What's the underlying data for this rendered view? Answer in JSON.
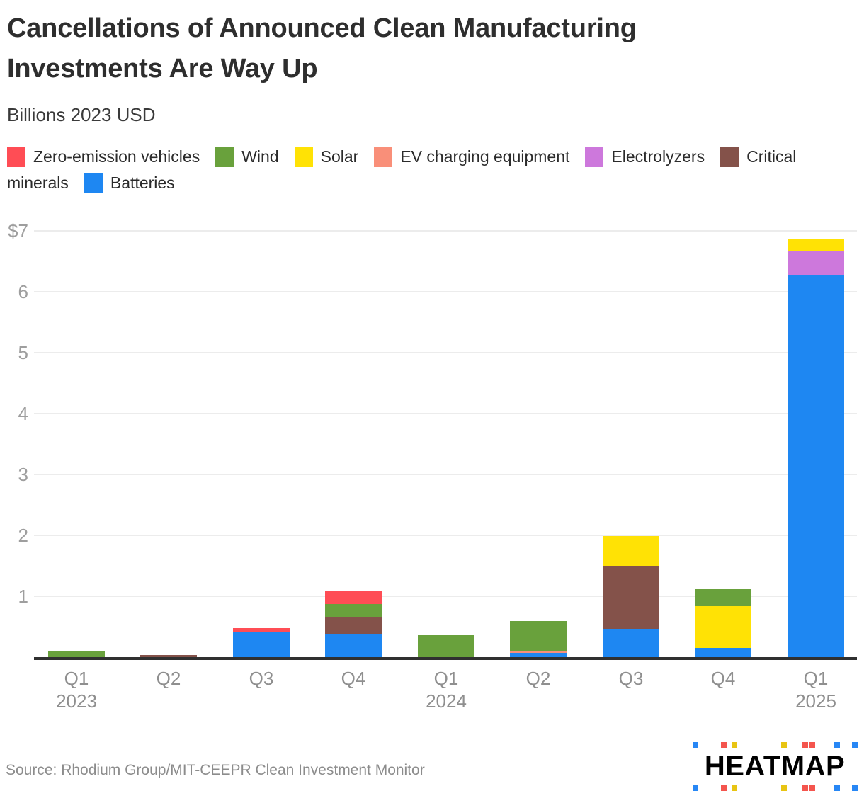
{
  "title": "Cancellations of Announced Clean Manufacturing Investments Are Way Up",
  "subtitle": "Billions 2023 USD",
  "source": "Source: Rhodium Group/MIT-CEEPR Clean Investment Monitor",
  "logo": {
    "text": "HEATMAP",
    "square_pattern": [
      "blue",
      "red",
      "yellow",
      "yellow",
      "red",
      "red",
      "blue",
      "blue"
    ],
    "square_colors": {
      "blue": "#2787f5",
      "red": "#f4554e",
      "yellow": "#e8c413"
    }
  },
  "chart_data": {
    "type": "bar",
    "stacked": true,
    "title": "Cancellations of Announced Clean Manufacturing Investments Are Way Up",
    "unit_label": "Billions 2023 USD",
    "xlabel": "",
    "ylabel": "Billions 2023 USD",
    "ylim": [
      0,
      7
    ],
    "grid": true,
    "legend_position": "top",
    "categories": [
      "Q1",
      "Q2",
      "Q3",
      "Q4",
      "Q1",
      "Q2",
      "Q3",
      "Q4",
      "Q1"
    ],
    "year_labels": [
      {
        "index": 0,
        "label": "2023"
      },
      {
        "index": 4,
        "label": "2024"
      },
      {
        "index": 8,
        "label": "2025"
      }
    ],
    "y_ticks": [
      {
        "value": 7,
        "label": "$7"
      },
      {
        "value": 6,
        "label": "6"
      },
      {
        "value": 5,
        "label": "5"
      },
      {
        "value": 4,
        "label": "4"
      },
      {
        "value": 3,
        "label": "3"
      },
      {
        "value": 2,
        "label": "2"
      },
      {
        "value": 1,
        "label": "1"
      }
    ],
    "legend": [
      {
        "label": "Zero-emission vehicles",
        "color": "#ff4d55"
      },
      {
        "label": "Wind",
        "color": "#69a13c"
      },
      {
        "label": "Solar",
        "color": "#ffe205"
      },
      {
        "label": "EV charging equipment",
        "color": "#f98f79"
      },
      {
        "label": "Electrolyzers",
        "color": "#cd78dc"
      },
      {
        "label": "Critical minerals",
        "color": "#84524a"
      },
      {
        "label": "Batteries",
        "color": "#1e87f2"
      }
    ],
    "series": [
      {
        "name": "Batteries",
        "color": "#1e87f2",
        "values": [
          0,
          0,
          0.42,
          0.37,
          0,
          0.07,
          0.47,
          0.15,
          6.27
        ]
      },
      {
        "name": "EV charging equipment",
        "color": "#f98f79",
        "values": [
          0,
          0,
          0,
          0,
          0,
          0.02,
          0,
          0,
          0
        ]
      },
      {
        "name": "Critical minerals",
        "color": "#84524a",
        "values": [
          0,
          0.03,
          0,
          0.28,
          0,
          0,
          1.02,
          0,
          0
        ]
      },
      {
        "name": "Electrolyzers",
        "color": "#cd78dc",
        "values": [
          0,
          0,
          0,
          0,
          0,
          0,
          0,
          0,
          0.39
        ]
      },
      {
        "name": "Solar",
        "color": "#ffe205",
        "values": [
          0,
          0,
          0,
          0,
          0,
          0,
          0.5,
          0.69,
          0.2
        ]
      },
      {
        "name": "Wind",
        "color": "#69a13c",
        "values": [
          0.09,
          0,
          0,
          0.22,
          0.36,
          0.5,
          0,
          0.28,
          0
        ]
      },
      {
        "name": "Zero-emission vehicles",
        "color": "#ff4d55",
        "values": [
          0,
          0,
          0.06,
          0.22,
          0,
          0,
          0,
          0,
          0
        ]
      }
    ],
    "totals": [
      0.09,
      0.03,
      0.48,
      1.09,
      0.36,
      0.59,
      1.99,
      1.12,
      6.86
    ]
  }
}
